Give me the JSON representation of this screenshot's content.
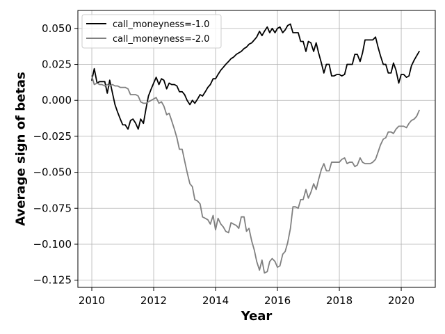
{
  "chart_data": {
    "type": "line",
    "title": "",
    "xlabel": "Year",
    "ylabel": "Average sign of betas",
    "xlim": [
      2009.55,
      2021.1
    ],
    "ylim": [
      -0.13,
      0.0625
    ],
    "xticks": [
      2010,
      2012,
      2014,
      2016,
      2018,
      2020
    ],
    "xtick_labels": [
      "2010",
      "2012",
      "2014",
      "2016",
      "2018",
      "2020"
    ],
    "yticks": [
      0.05,
      0.025,
      0.0,
      -0.025,
      -0.05,
      -0.075,
      -0.1,
      -0.125
    ],
    "ytick_labels": [
      "0.050",
      "0.025",
      "0.000",
      "−0.025",
      "−0.050",
      "−0.075",
      "−0.100",
      "−0.125"
    ],
    "grid": true,
    "legend_position": "top-left",
    "series": [
      {
        "name": "call_moneyness=-1.0",
        "color": "#000000",
        "points": [
          [
            2010.0,
            0.014
          ],
          [
            2010.08,
            0.022
          ],
          [
            2010.17,
            0.012
          ],
          [
            2010.25,
            0.013
          ],
          [
            2010.33,
            0.013
          ],
          [
            2010.42,
            0.013
          ],
          [
            2010.5,
            0.005
          ],
          [
            2010.58,
            0.014
          ],
          [
            2010.67,
            0.005
          ],
          [
            2010.75,
            -0.003
          ],
          [
            2010.83,
            -0.008
          ],
          [
            2010.92,
            -0.013
          ],
          [
            2011.0,
            -0.017
          ],
          [
            2011.08,
            -0.017
          ],
          [
            2011.17,
            -0.02
          ],
          [
            2011.25,
            -0.014
          ],
          [
            2011.33,
            -0.013
          ],
          [
            2011.42,
            -0.016
          ],
          [
            2011.5,
            -0.02
          ],
          [
            2011.58,
            -0.013
          ],
          [
            2011.67,
            -0.016
          ],
          [
            2011.75,
            -0.006
          ],
          [
            2011.83,
            0.003
          ],
          [
            2011.92,
            0.008
          ],
          [
            2012.0,
            0.012
          ],
          [
            2012.08,
            0.016
          ],
          [
            2012.17,
            0.011
          ],
          [
            2012.25,
            0.015
          ],
          [
            2012.33,
            0.014
          ],
          [
            2012.42,
            0.008
          ],
          [
            2012.5,
            0.012
          ],
          [
            2012.58,
            0.011
          ],
          [
            2012.67,
            0.011
          ],
          [
            2012.75,
            0.01
          ],
          [
            2012.83,
            0.006
          ],
          [
            2012.92,
            0.006
          ],
          [
            2013.0,
            0.004
          ],
          [
            2013.08,
            0.0
          ],
          [
            2013.17,
            -0.003
          ],
          [
            2013.25,
            0.0
          ],
          [
            2013.33,
            -0.002
          ],
          [
            2013.42,
            0.001
          ],
          [
            2013.5,
            0.004
          ],
          [
            2013.58,
            0.003
          ],
          [
            2013.67,
            0.006
          ],
          [
            2013.75,
            0.009
          ],
          [
            2013.83,
            0.011
          ],
          [
            2013.92,
            0.015
          ],
          [
            2014.0,
            0.015
          ],
          [
            2014.08,
            0.018
          ],
          [
            2014.17,
            0.021
          ],
          [
            2014.25,
            0.023
          ],
          [
            2014.33,
            0.025
          ],
          [
            2014.42,
            0.027
          ],
          [
            2014.5,
            0.029
          ],
          [
            2014.58,
            0.03
          ],
          [
            2014.67,
            0.032
          ],
          [
            2014.75,
            0.033
          ],
          [
            2014.83,
            0.034
          ],
          [
            2014.92,
            0.036
          ],
          [
            2015.0,
            0.037
          ],
          [
            2015.08,
            0.039
          ],
          [
            2015.17,
            0.04
          ],
          [
            2015.25,
            0.042
          ],
          [
            2015.33,
            0.044
          ],
          [
            2015.42,
            0.048
          ],
          [
            2015.5,
            0.045
          ],
          [
            2015.58,
            0.048
          ],
          [
            2015.67,
            0.051
          ],
          [
            2015.75,
            0.047
          ],
          [
            2015.83,
            0.05
          ],
          [
            2015.92,
            0.047
          ],
          [
            2016.0,
            0.05
          ],
          [
            2016.08,
            0.051
          ],
          [
            2016.17,
            0.047
          ],
          [
            2016.25,
            0.049
          ],
          [
            2016.33,
            0.052
          ],
          [
            2016.42,
            0.053
          ],
          [
            2016.5,
            0.047
          ],
          [
            2016.58,
            0.047
          ],
          [
            2016.67,
            0.047
          ],
          [
            2016.75,
            0.041
          ],
          [
            2016.83,
            0.041
          ],
          [
            2016.92,
            0.034
          ],
          [
            2017.0,
            0.041
          ],
          [
            2017.08,
            0.04
          ],
          [
            2017.17,
            0.034
          ],
          [
            2017.25,
            0.04
          ],
          [
            2017.33,
            0.033
          ],
          [
            2017.42,
            0.026
          ],
          [
            2017.5,
            0.019
          ],
          [
            2017.58,
            0.025
          ],
          [
            2017.67,
            0.025
          ],
          [
            2017.75,
            0.017
          ],
          [
            2017.83,
            0.017
          ],
          [
            2017.92,
            0.018
          ],
          [
            2018.0,
            0.018
          ],
          [
            2018.08,
            0.017
          ],
          [
            2018.17,
            0.018
          ],
          [
            2018.25,
            0.025
          ],
          [
            2018.33,
            0.025
          ],
          [
            2018.42,
            0.025
          ],
          [
            2018.5,
            0.032
          ],
          [
            2018.58,
            0.032
          ],
          [
            2018.67,
            0.027
          ],
          [
            2018.75,
            0.033
          ],
          [
            2018.83,
            0.042
          ],
          [
            2018.92,
            0.042
          ],
          [
            2019.0,
            0.042
          ],
          [
            2019.08,
            0.042
          ],
          [
            2019.17,
            0.044
          ],
          [
            2019.25,
            0.037
          ],
          [
            2019.33,
            0.031
          ],
          [
            2019.42,
            0.025
          ],
          [
            2019.5,
            0.025
          ],
          [
            2019.58,
            0.019
          ],
          [
            2019.67,
            0.019
          ],
          [
            2019.75,
            0.026
          ],
          [
            2019.83,
            0.021
          ],
          [
            2019.92,
            0.012
          ],
          [
            2020.0,
            0.018
          ],
          [
            2020.08,
            0.018
          ],
          [
            2020.17,
            0.016
          ],
          [
            2020.25,
            0.017
          ],
          [
            2020.33,
            0.024
          ],
          [
            2020.42,
            0.028
          ],
          [
            2020.5,
            0.031
          ],
          [
            2020.58,
            0.034
          ]
        ]
      },
      {
        "name": "call_moneyness=-2.0",
        "color": "#808080",
        "points": [
          [
            2010.0,
            0.017
          ],
          [
            2010.08,
            0.011
          ],
          [
            2010.17,
            0.012
          ],
          [
            2010.25,
            0.011
          ],
          [
            2010.33,
            0.011
          ],
          [
            2010.42,
            0.01
          ],
          [
            2010.5,
            0.011
          ],
          [
            2010.58,
            0.01
          ],
          [
            2010.67,
            0.011
          ],
          [
            2010.75,
            0.01
          ],
          [
            2010.83,
            0.01
          ],
          [
            2010.92,
            0.009
          ],
          [
            2011.0,
            0.009
          ],
          [
            2011.08,
            0.009
          ],
          [
            2011.17,
            0.008
          ],
          [
            2011.25,
            0.004
          ],
          [
            2011.33,
            0.004
          ],
          [
            2011.42,
            0.004
          ],
          [
            2011.5,
            0.003
          ],
          [
            2011.58,
            -0.001
          ],
          [
            2011.67,
            -0.002
          ],
          [
            2011.75,
            -0.002
          ],
          [
            2011.83,
            -0.001
          ],
          [
            2011.92,
            0.0
          ],
          [
            2012.0,
            0.001
          ],
          [
            2012.08,
            0.002
          ],
          [
            2012.17,
            -0.002
          ],
          [
            2012.25,
            -0.001
          ],
          [
            2012.33,
            -0.004
          ],
          [
            2012.42,
            -0.01
          ],
          [
            2012.5,
            -0.009
          ],
          [
            2012.58,
            -0.014
          ],
          [
            2012.67,
            -0.02
          ],
          [
            2012.75,
            -0.026
          ],
          [
            2012.83,
            -0.034
          ],
          [
            2012.92,
            -0.034
          ],
          [
            2013.0,
            -0.042
          ],
          [
            2013.08,
            -0.05
          ],
          [
            2013.17,
            -0.058
          ],
          [
            2013.25,
            -0.06
          ],
          [
            2013.33,
            -0.069
          ],
          [
            2013.42,
            -0.07
          ],
          [
            2013.5,
            -0.072
          ],
          [
            2013.58,
            -0.081
          ],
          [
            2013.67,
            -0.082
          ],
          [
            2013.75,
            -0.083
          ],
          [
            2013.83,
            -0.086
          ],
          [
            2013.92,
            -0.08
          ],
          [
            2014.0,
            -0.09
          ],
          [
            2014.08,
            -0.082
          ],
          [
            2014.17,
            -0.086
          ],
          [
            2014.25,
            -0.088
          ],
          [
            2014.33,
            -0.091
          ],
          [
            2014.42,
            -0.092
          ],
          [
            2014.5,
            -0.085
          ],
          [
            2014.58,
            -0.086
          ],
          [
            2014.67,
            -0.087
          ],
          [
            2014.75,
            -0.089
          ],
          [
            2014.83,
            -0.081
          ],
          [
            2014.92,
            -0.081
          ],
          [
            2015.0,
            -0.091
          ],
          [
            2015.08,
            -0.089
          ],
          [
            2015.17,
            -0.098
          ],
          [
            2015.25,
            -0.104
          ],
          [
            2015.33,
            -0.112
          ],
          [
            2015.42,
            -0.118
          ],
          [
            2015.5,
            -0.111
          ],
          [
            2015.58,
            -0.12
          ],
          [
            2015.67,
            -0.119
          ],
          [
            2015.75,
            -0.112
          ],
          [
            2015.83,
            -0.11
          ],
          [
            2015.92,
            -0.112
          ],
          [
            2016.0,
            -0.116
          ],
          [
            2016.08,
            -0.115
          ],
          [
            2016.17,
            -0.107
          ],
          [
            2016.25,
            -0.105
          ],
          [
            2016.33,
            -0.099
          ],
          [
            2016.42,
            -0.089
          ],
          [
            2016.5,
            -0.074
          ],
          [
            2016.58,
            -0.074
          ],
          [
            2016.67,
            -0.075
          ],
          [
            2016.75,
            -0.069
          ],
          [
            2016.83,
            -0.069
          ],
          [
            2016.92,
            -0.062
          ],
          [
            2017.0,
            -0.068
          ],
          [
            2017.08,
            -0.064
          ],
          [
            2017.17,
            -0.058
          ],
          [
            2017.25,
            -0.062
          ],
          [
            2017.33,
            -0.055
          ],
          [
            2017.42,
            -0.048
          ],
          [
            2017.5,
            -0.044
          ],
          [
            2017.58,
            -0.049
          ],
          [
            2017.67,
            -0.049
          ],
          [
            2017.75,
            -0.043
          ],
          [
            2017.83,
            -0.043
          ],
          [
            2017.92,
            -0.043
          ],
          [
            2018.0,
            -0.043
          ],
          [
            2018.08,
            -0.041
          ],
          [
            2018.17,
            -0.04
          ],
          [
            2018.25,
            -0.044
          ],
          [
            2018.33,
            -0.043
          ],
          [
            2018.42,
            -0.043
          ],
          [
            2018.5,
            -0.046
          ],
          [
            2018.58,
            -0.045
          ],
          [
            2018.67,
            -0.04
          ],
          [
            2018.75,
            -0.043
          ],
          [
            2018.83,
            -0.044
          ],
          [
            2018.92,
            -0.044
          ],
          [
            2019.0,
            -0.044
          ],
          [
            2019.08,
            -0.043
          ],
          [
            2019.17,
            -0.041
          ],
          [
            2019.25,
            -0.036
          ],
          [
            2019.33,
            -0.031
          ],
          [
            2019.42,
            -0.027
          ],
          [
            2019.5,
            -0.026
          ],
          [
            2019.58,
            -0.022
          ],
          [
            2019.67,
            -0.022
          ],
          [
            2019.75,
            -0.023
          ],
          [
            2019.83,
            -0.02
          ],
          [
            2019.92,
            -0.018
          ],
          [
            2020.0,
            -0.018
          ],
          [
            2020.08,
            -0.018
          ],
          [
            2020.17,
            -0.019
          ],
          [
            2020.25,
            -0.016
          ],
          [
            2020.33,
            -0.014
          ],
          [
            2020.42,
            -0.013
          ],
          [
            2020.5,
            -0.011
          ],
          [
            2020.58,
            -0.007
          ]
        ]
      }
    ]
  }
}
